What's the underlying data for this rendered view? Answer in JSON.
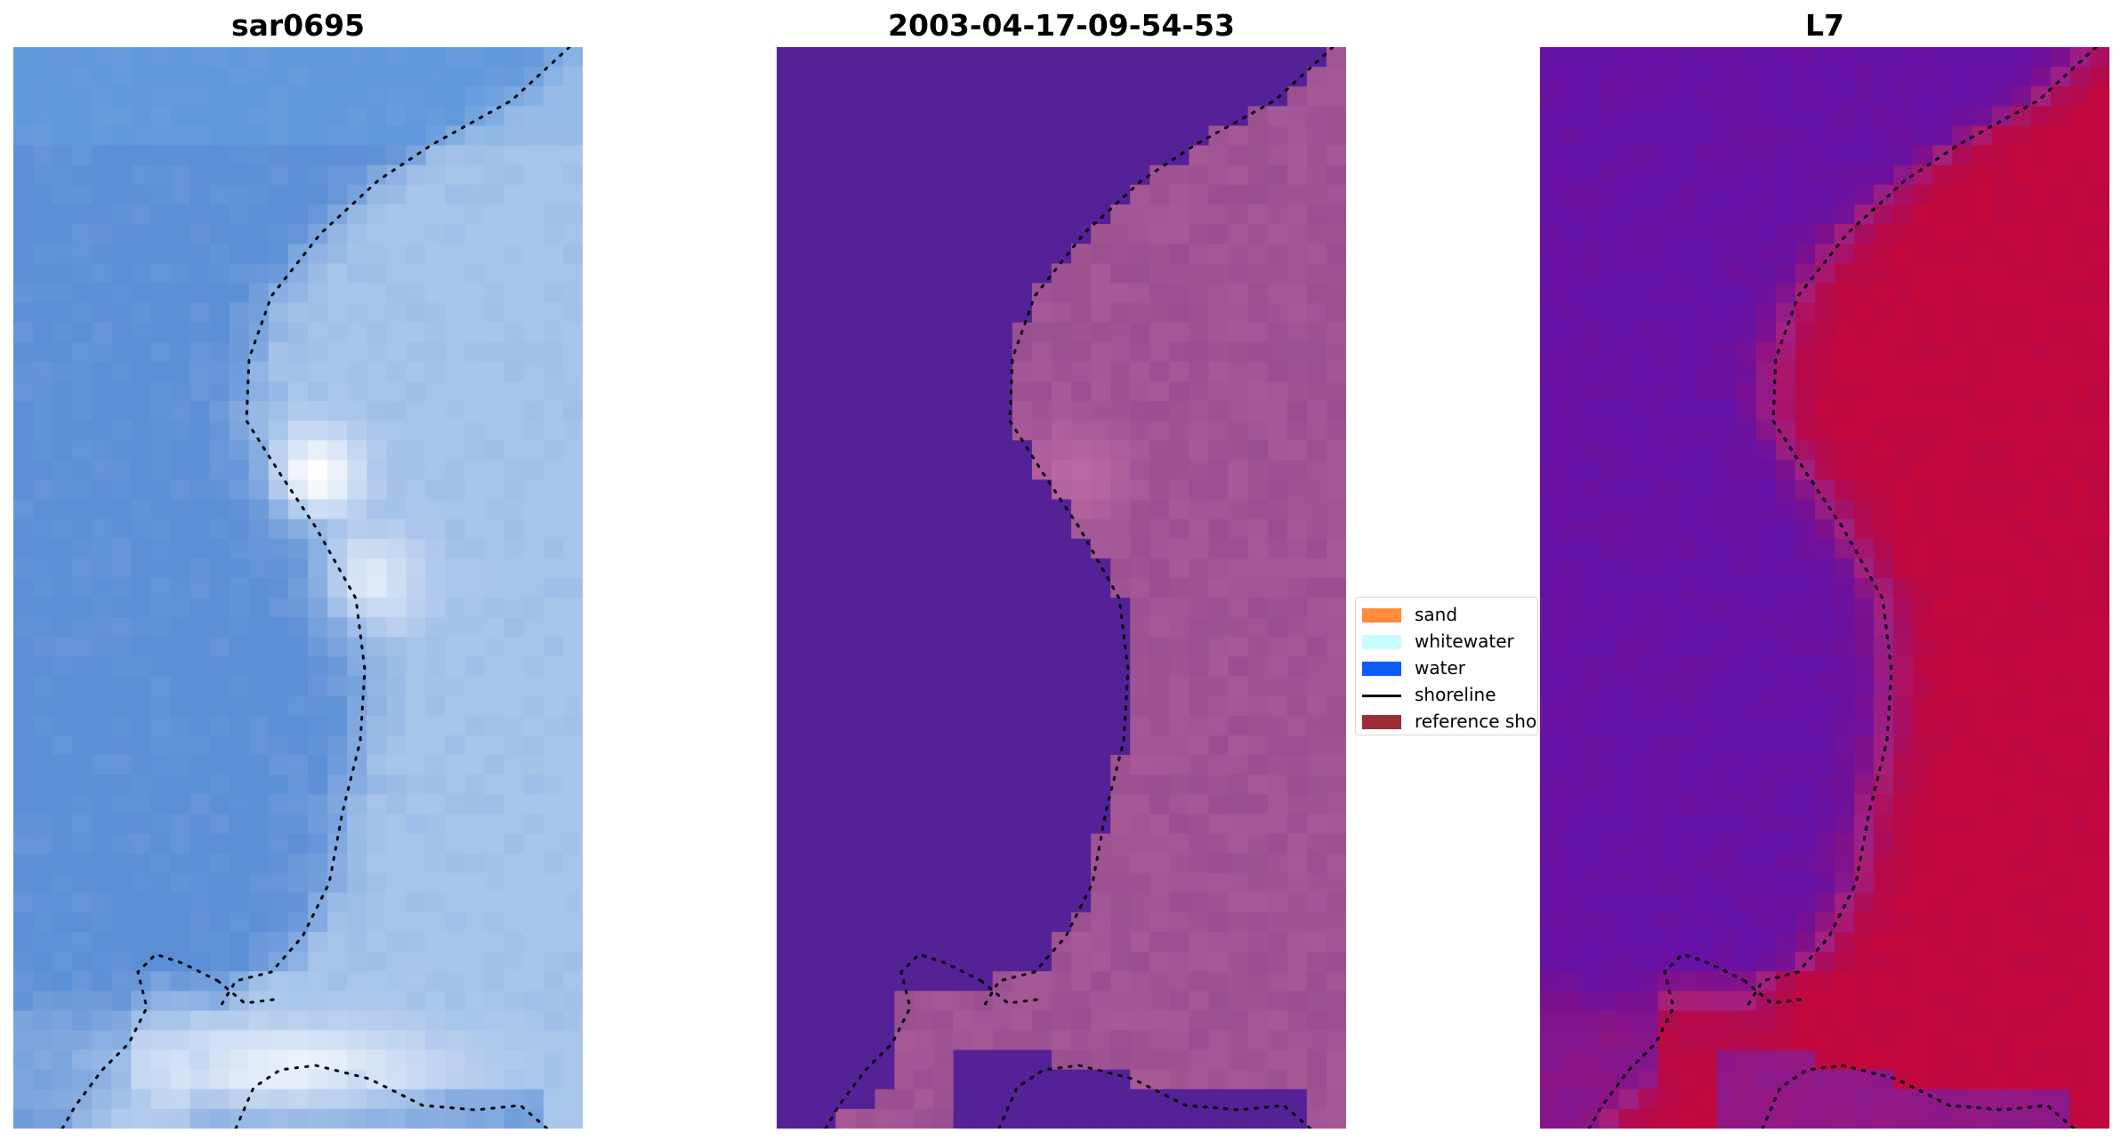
{
  "panels": [
    {
      "id": "rgb",
      "title": "sar0695"
    },
    {
      "id": "classified",
      "title": "2003-04-17-09-54-53"
    },
    {
      "id": "mndwi",
      "title": "L7"
    }
  ],
  "legend": {
    "items": [
      {
        "label": "sand",
        "color": "#ff8c3a",
        "kind": "patch"
      },
      {
        "label": "whitewater",
        "color": "#c8fcff",
        "kind": "patch"
      },
      {
        "label": "water",
        "color": "#0a5cf5",
        "kind": "patch"
      },
      {
        "label": "shoreline",
        "color": "#000000",
        "kind": "line"
      },
      {
        "label": "reference shoreline",
        "color": "#9a2e34",
        "kind": "patch"
      }
    ]
  },
  "colors": {
    "rgb_water": "#5b8fd6",
    "rgb_land": "#a9c4ea",
    "rgb_bright": "#ffffff",
    "classified_water": "#542196",
    "classified_land": "#9a4f90",
    "classified_bright": "#c26fa6",
    "mndwi_water": "#6612a6",
    "mndwi_land": "#c2083c",
    "shoreline_dots": "#000000"
  }
}
